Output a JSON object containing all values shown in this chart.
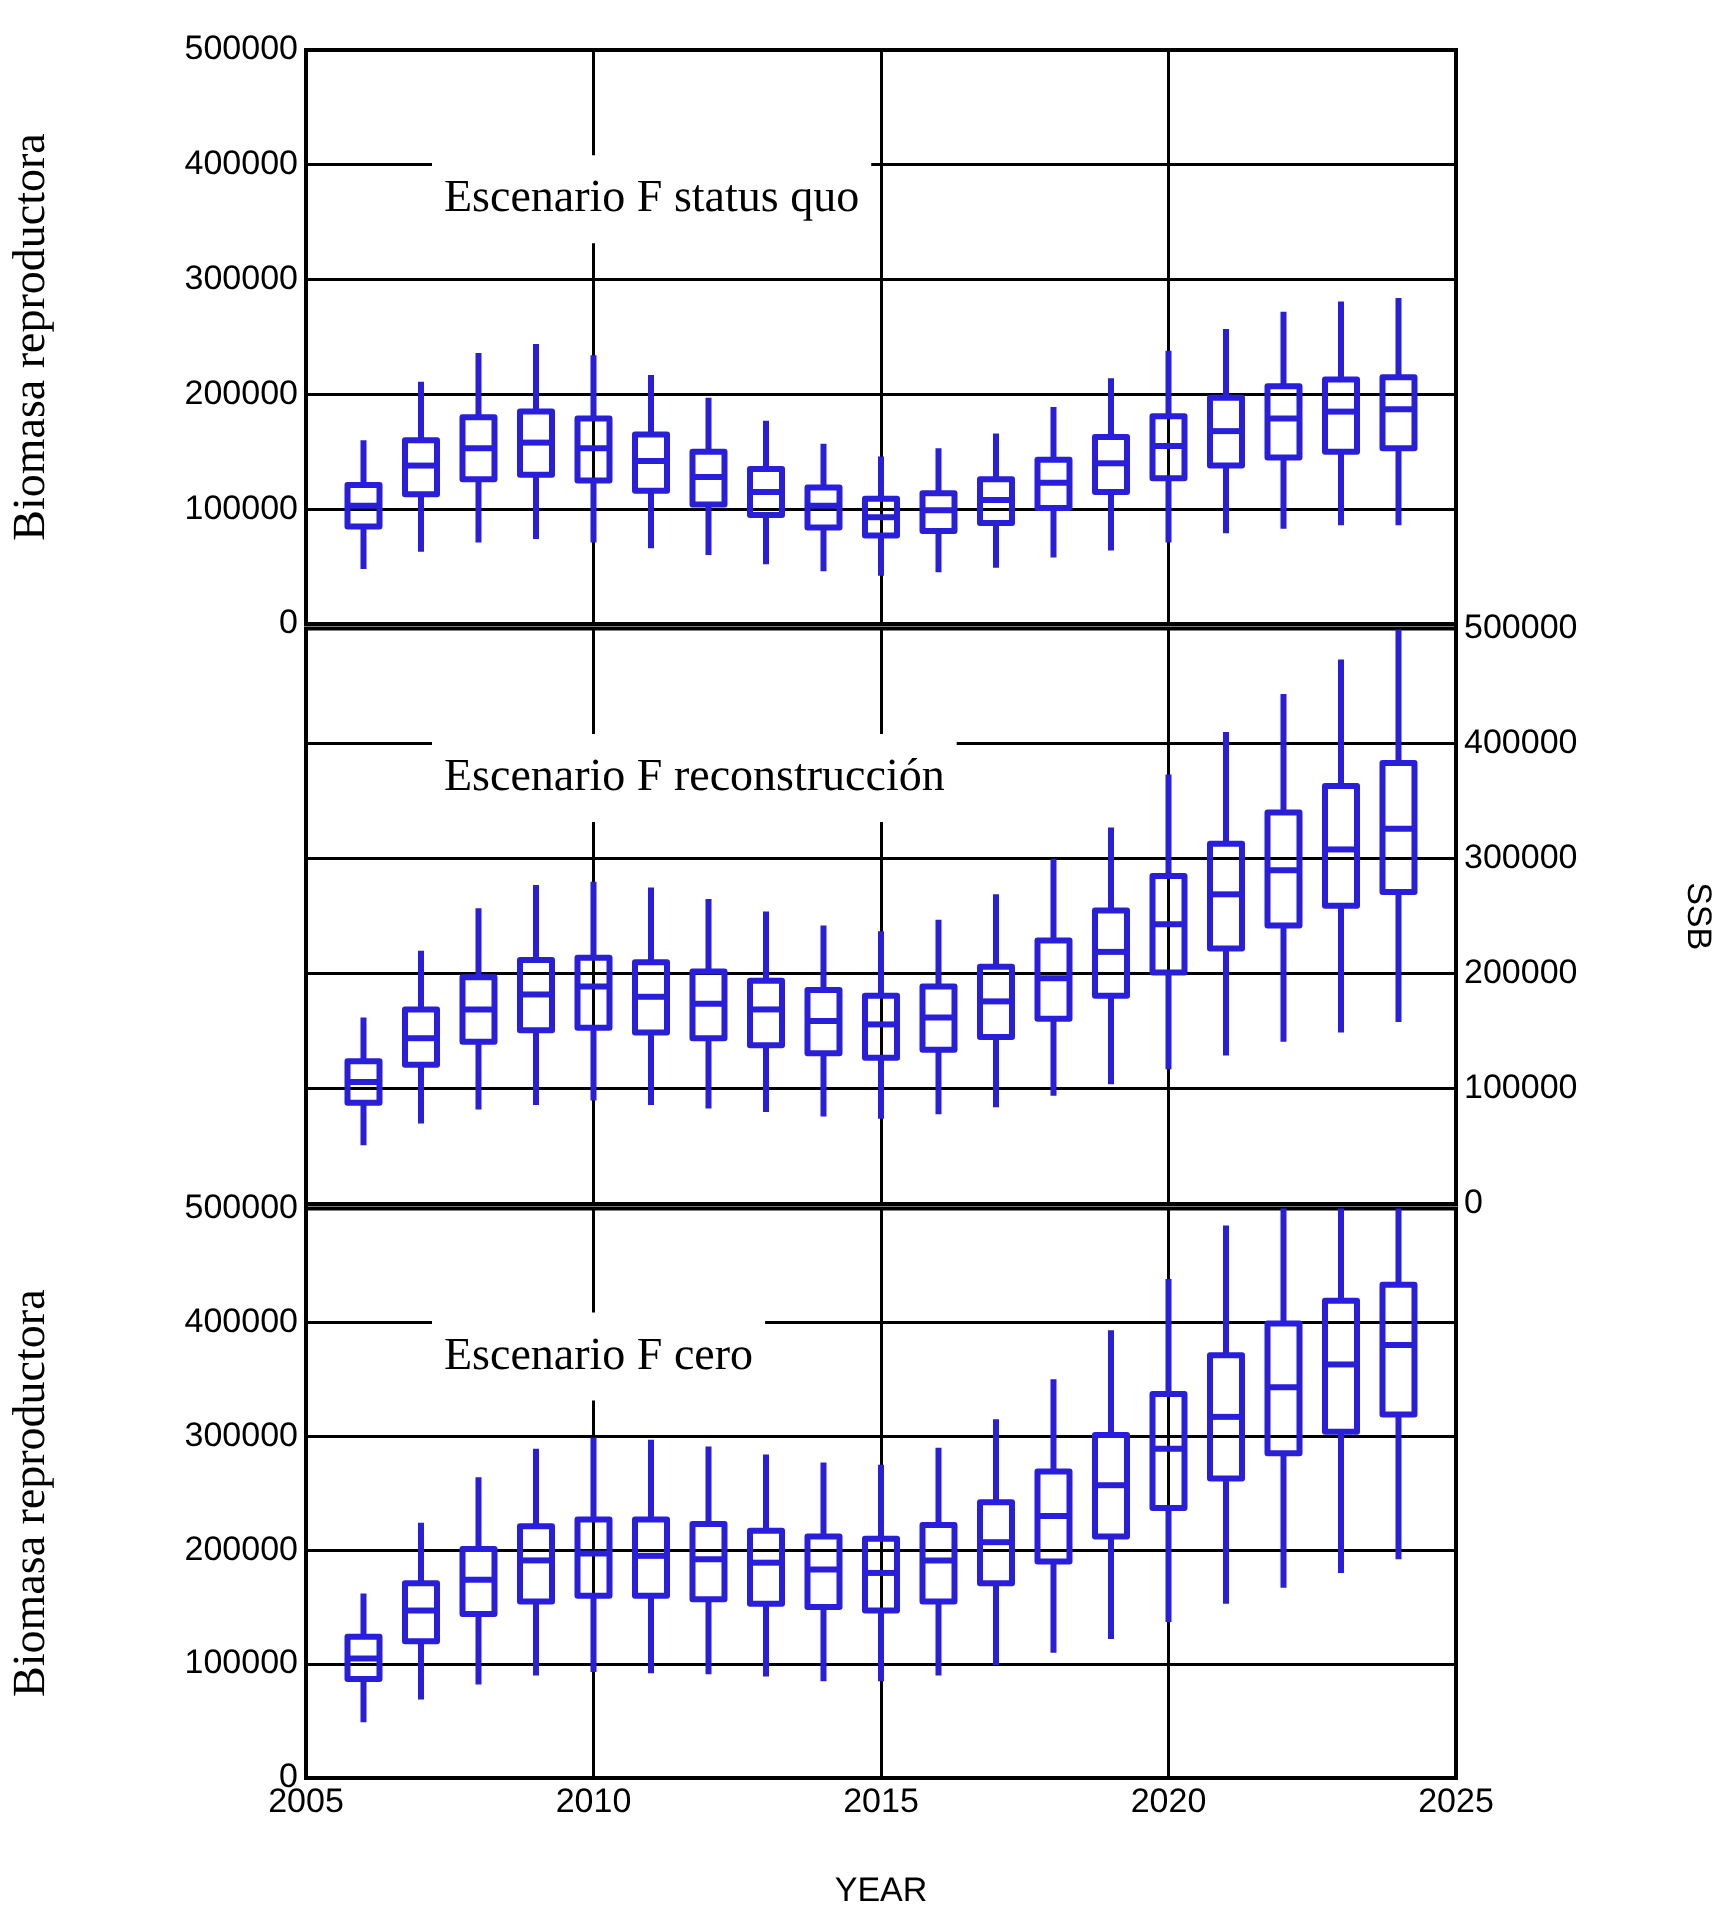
{
  "chart_data": [
    {
      "type": "box",
      "x": [
        2006,
        2007,
        2008,
        2009,
        2010,
        2011,
        2012,
        2013,
        2014,
        2015,
        2016,
        2017,
        2018,
        2019,
        2020,
        2021,
        2022,
        2023,
        2024
      ],
      "xlim": [
        2005,
        2025
      ],
      "xticks": [
        2005,
        2010,
        2015,
        2020,
        2025
      ],
      "ylim": [
        0,
        500000
      ],
      "yticks": [
        0,
        100000,
        200000,
        300000,
        400000,
        500000
      ],
      "ylabel": "Biomasa reproductora",
      "grid": true,
      "tick_labels": "y",
      "annotations": [
        "Escenario F status quo"
      ],
      "series": [
        {
          "color": "#2a1fd8",
          "boxes": [
            {
              "low": 48000,
              "q1": 85000,
              "median": 103000,
              "q3": 121000,
              "high": 160000
            },
            {
              "low": 63000,
              "q1": 113000,
              "median": 138000,
              "q3": 160000,
              "high": 211000
            },
            {
              "low": 71000,
              "q1": 126000,
              "median": 153000,
              "q3": 180000,
              "high": 236000
            },
            {
              "low": 74000,
              "q1": 130000,
              "median": 158000,
              "q3": 185000,
              "high": 244000
            },
            {
              "low": 71000,
              "q1": 125000,
              "median": 153000,
              "q3": 179000,
              "high": 234000
            },
            {
              "low": 66000,
              "q1": 116000,
              "median": 142000,
              "q3": 165000,
              "high": 217000
            },
            {
              "low": 60000,
              "q1": 104000,
              "median": 128000,
              "q3": 150000,
              "high": 197000
            },
            {
              "low": 52000,
              "q1": 95000,
              "median": 115000,
              "q3": 135000,
              "high": 177000
            },
            {
              "low": 46000,
              "q1": 84000,
              "median": 103000,
              "q3": 119000,
              "high": 157000
            },
            {
              "low": 42000,
              "q1": 77000,
              "median": 93000,
              "q3": 109000,
              "high": 146000
            },
            {
              "low": 45000,
              "q1": 81000,
              "median": 99000,
              "q3": 114000,
              "high": 153000
            },
            {
              "low": 49000,
              "q1": 88000,
              "median": 108000,
              "q3": 126000,
              "high": 166000
            },
            {
              "low": 58000,
              "q1": 101000,
              "median": 123000,
              "q3": 143000,
              "high": 189000
            },
            {
              "low": 64000,
              "q1": 115000,
              "median": 140000,
              "q3": 163000,
              "high": 214000
            },
            {
              "low": 71000,
              "q1": 127000,
              "median": 155000,
              "q3": 181000,
              "high": 238000
            },
            {
              "low": 79000,
              "q1": 138000,
              "median": 168000,
              "q3": 197000,
              "high": 257000
            },
            {
              "low": 83000,
              "q1": 145000,
              "median": 179000,
              "q3": 207000,
              "high": 272000
            },
            {
              "low": 86000,
              "q1": 150000,
              "median": 185000,
              "q3": 213000,
              "high": 281000
            },
            {
              "low": 86000,
              "q1": 153000,
              "median": 187000,
              "q3": 215000,
              "high": 284000
            }
          ]
        }
      ]
    },
    {
      "type": "box",
      "x": [
        2006,
        2007,
        2008,
        2009,
        2010,
        2011,
        2012,
        2013,
        2014,
        2015,
        2016,
        2017,
        2018,
        2019,
        2020,
        2021,
        2022,
        2023,
        2024
      ],
      "xlim": [
        2005,
        2025
      ],
      "xticks": [
        2005,
        2010,
        2015,
        2020,
        2025
      ],
      "ylim": [
        0,
        500000
      ],
      "yticks": [
        0,
        100000,
        200000,
        300000,
        400000,
        500000
      ],
      "ylabel": "SSB",
      "grid": true,
      "tick_labels": "y",
      "annotations": [
        "Escenario F reconstrucción"
      ],
      "series": [
        {
          "color": "#2a1fd8",
          "boxes": [
            {
              "low": 51000,
              "q1": 88000,
              "median": 106000,
              "q3": 124000,
              "high": 162000
            },
            {
              "low": 70000,
              "q1": 121000,
              "median": 144000,
              "q3": 169000,
              "high": 220000
            },
            {
              "low": 82000,
              "q1": 141000,
              "median": 169000,
              "q3": 197000,
              "high": 257000
            },
            {
              "low": 86000,
              "q1": 151000,
              "median": 182000,
              "q3": 212000,
              "high": 277000
            },
            {
              "low": 90000,
              "q1": 153000,
              "median": 189000,
              "q3": 214000,
              "high": 280000
            },
            {
              "low": 86000,
              "q1": 149000,
              "median": 180000,
              "q3": 210000,
              "high": 275000
            },
            {
              "low": 83000,
              "q1": 144000,
              "median": 174000,
              "q3": 202000,
              "high": 265000
            },
            {
              "low": 80000,
              "q1": 138000,
              "median": 169000,
              "q3": 194000,
              "high": 254000
            },
            {
              "low": 76000,
              "q1": 131000,
              "median": 159000,
              "q3": 186000,
              "high": 242000
            },
            {
              "low": 74000,
              "q1": 127000,
              "median": 156000,
              "q3": 181000,
              "high": 237000
            },
            {
              "low": 78000,
              "q1": 134000,
              "median": 162000,
              "q3": 189000,
              "high": 247000
            },
            {
              "low": 84000,
              "q1": 145000,
              "median": 176000,
              "q3": 206000,
              "high": 269000
            },
            {
              "low": 94000,
              "q1": 161000,
              "median": 196000,
              "q3": 229000,
              "high": 300000
            },
            {
              "low": 104000,
              "q1": 181000,
              "median": 219000,
              "q3": 255000,
              "high": 327000
            },
            {
              "low": 117000,
              "q1": 201000,
              "median": 243000,
              "q3": 285000,
              "high": 373000
            },
            {
              "low": 129000,
              "q1": 222000,
              "median": 269000,
              "q3": 313000,
              "high": 410000
            },
            {
              "low": 141000,
              "q1": 242000,
              "median": 290000,
              "q3": 340000,
              "high": 443000
            },
            {
              "low": 149000,
              "q1": 259000,
              "median": 308000,
              "q3": 363000,
              "high": 473000
            },
            {
              "low": 158000,
              "q1": 271000,
              "median": 326000,
              "q3": 383000,
              "high": 499000
            }
          ]
        }
      ]
    },
    {
      "type": "box",
      "x": [
        2006,
        2007,
        2008,
        2009,
        2010,
        2011,
        2012,
        2013,
        2014,
        2015,
        2016,
        2017,
        2018,
        2019,
        2020,
        2021,
        2022,
        2023,
        2024
      ],
      "xlim": [
        2005,
        2025
      ],
      "xticks": [
        2005,
        2010,
        2015,
        2020,
        2025
      ],
      "ylim": [
        0,
        500000
      ],
      "yticks": [
        0,
        100000,
        200000,
        300000,
        400000,
        500000
      ],
      "xlabel": "YEAR",
      "ylabel": "Biomasa reproductora",
      "grid": true,
      "annotations": [
        "Escenario F cero"
      ],
      "series": [
        {
          "color": "#2a1fd8",
          "boxes": [
            {
              "low": 49000,
              "q1": 87000,
              "median": 105000,
              "q3": 124000,
              "high": 162000
            },
            {
              "low": 69000,
              "q1": 120000,
              "median": 147000,
              "q3": 171000,
              "high": 224000
            },
            {
              "low": 82000,
              "q1": 144000,
              "median": 174000,
              "q3": 201000,
              "high": 264000
            },
            {
              "low": 90000,
              "q1": 155000,
              "median": 191000,
              "q3": 221000,
              "high": 289000
            },
            {
              "low": 93000,
              "q1": 160000,
              "median": 197000,
              "q3": 227000,
              "high": 299000
            },
            {
              "low": 92000,
              "q1": 160000,
              "median": 195000,
              "q3": 227000,
              "high": 297000
            },
            {
              "low": 91000,
              "q1": 157000,
              "median": 192000,
              "q3": 223000,
              "high": 291000
            },
            {
              "low": 89000,
              "q1": 153000,
              "median": 189000,
              "q3": 217000,
              "high": 284000
            },
            {
              "low": 85000,
              "q1": 150000,
              "median": 183000,
              "q3": 212000,
              "high": 277000
            },
            {
              "low": 85000,
              "q1": 147000,
              "median": 180000,
              "q3": 210000,
              "high": 275000
            },
            {
              "low": 90000,
              "q1": 155000,
              "median": 191000,
              "q3": 222000,
              "high": 290000
            },
            {
              "low": 99000,
              "q1": 171000,
              "median": 207000,
              "q3": 242000,
              "high": 315000
            },
            {
              "low": 110000,
              "q1": 190000,
              "median": 230000,
              "q3": 269000,
              "high": 350000
            },
            {
              "low": 122000,
              "q1": 212000,
              "median": 257000,
              "q3": 301000,
              "high": 393000
            },
            {
              "low": 137000,
              "q1": 237000,
              "median": 289000,
              "q3": 337000,
              "high": 438000
            },
            {
              "low": 153000,
              "q1": 263000,
              "median": 317000,
              "q3": 371000,
              "high": 485000
            },
            {
              "low": 167000,
              "q1": 285000,
              "median": 343000,
              "q3": 399000,
              "high": 500000
            },
            {
              "low": 180000,
              "q1": 304000,
              "median": 363000,
              "q3": 419000,
              "high": 500000
            },
            {
              "low": 192000,
              "q1": 319000,
              "median": 380000,
              "q3": 433000,
              "high": 500000
            }
          ]
        }
      ]
    }
  ]
}
